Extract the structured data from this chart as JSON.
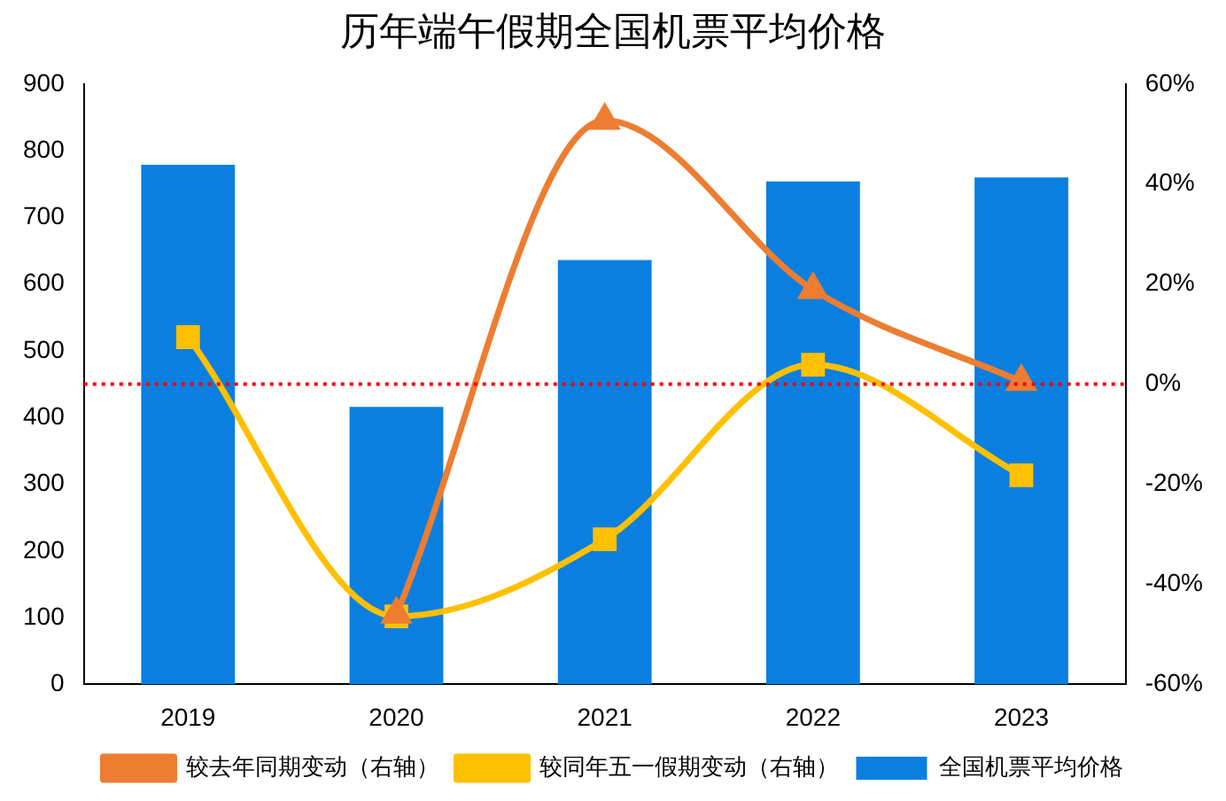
{
  "chart_data": {
    "type": "bar",
    "title": "历年端午假期全国机票平均价格",
    "categories": [
      "2019",
      "2020",
      "2021",
      "2022",
      "2023"
    ],
    "series": [
      {
        "name": "全国机票平均价格",
        "color": "#0a7fe0",
        "values": [
          779,
          416,
          636,
          754,
          760
        ]
      },
      {
        "name": "较同年五一假期变动（右轴）",
        "type": "line",
        "axis": "y2",
        "color": "#ffc000",
        "marker": "square",
        "values": [
          9.4,
          -46.4,
          -31,
          3.9,
          -18.2
        ]
      },
      {
        "name": "较去年同期变动（右轴）",
        "type": "line",
        "axis": "y2",
        "color": "#ed7d31",
        "marker": "triangle",
        "values": [
          null,
          -46,
          52.7,
          18.9,
          0.5
        ]
      }
    ],
    "ylim": [
      0,
      900
    ],
    "yticks": [
      0,
      100,
      200,
      300,
      400,
      500,
      600,
      700,
      800,
      900
    ],
    "y2lim": [
      -60,
      60
    ],
    "y2ticks": [
      {
        "value": -60,
        "label": "-60%"
      },
      {
        "value": -40,
        "label": "-40%"
      },
      {
        "value": -20,
        "label": "-20%"
      },
      {
        "value": 0,
        "label": "0%"
      },
      {
        "value": 20,
        "label": "20%"
      },
      {
        "value": 40,
        "label": "40%"
      },
      {
        "value": 60,
        "label": "60%"
      }
    ],
    "ref_lines": [
      {
        "axis": "y2",
        "value": 0,
        "color": "#ff0000",
        "line_style": "dotted"
      }
    ],
    "legend": "bottom",
    "grid": false
  }
}
